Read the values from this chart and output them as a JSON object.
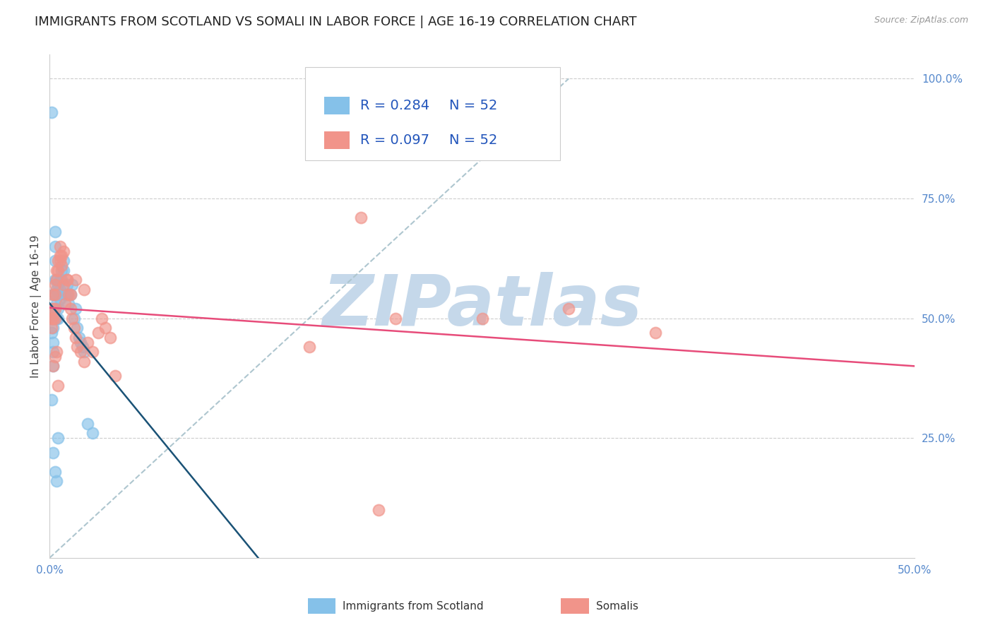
{
  "title": "IMMIGRANTS FROM SCOTLAND VS SOMALI IN LABOR FORCE | AGE 16-19 CORRELATION CHART",
  "source": "Source: ZipAtlas.com",
  "ylabel": "In Labor Force | Age 16-19",
  "xlim": [
    0.0,
    0.5
  ],
  "ylim": [
    0.0,
    1.05
  ],
  "scotland_R": 0.284,
  "scotland_N": 52,
  "somali_R": 0.097,
  "somali_N": 52,
  "scotland_color": "#85C1E9",
  "somali_color": "#F1948A",
  "trendline_scotland_color": "#1A5276",
  "trendline_somali_color": "#E74C7A",
  "diagonal_color": "#AEC6CF",
  "background_color": "#FFFFFF",
  "grid_color": "#CCCCCC",
  "title_fontsize": 13,
  "axis_label_fontsize": 11,
  "tick_label_fontsize": 11,
  "legend_fontsize": 14,
  "watermark": "ZIPatlas",
  "watermark_color": "#C5D8EA",
  "watermark_fontsize": 72,
  "scotland_x": [
    0.001,
    0.001,
    0.001,
    0.002,
    0.002,
    0.002,
    0.002,
    0.002,
    0.002,
    0.002,
    0.003,
    0.003,
    0.003,
    0.003,
    0.003,
    0.003,
    0.003,
    0.004,
    0.004,
    0.004,
    0.004,
    0.005,
    0.005,
    0.005,
    0.005,
    0.006,
    0.006,
    0.006,
    0.007,
    0.007,
    0.008,
    0.008,
    0.009,
    0.01,
    0.01,
    0.011,
    0.012,
    0.013,
    0.014,
    0.015,
    0.016,
    0.017,
    0.018,
    0.019,
    0.02,
    0.022,
    0.025,
    0.001,
    0.002,
    0.003,
    0.004,
    0.005
  ],
  "scotland_y": [
    0.93,
    0.5,
    0.47,
    0.55,
    0.52,
    0.5,
    0.48,
    0.45,
    0.43,
    0.4,
    0.68,
    0.65,
    0.62,
    0.58,
    0.55,
    0.52,
    0.5,
    0.58,
    0.56,
    0.53,
    0.5,
    0.57,
    0.55,
    0.52,
    0.5,
    0.58,
    0.56,
    0.54,
    0.6,
    0.58,
    0.62,
    0.6,
    0.55,
    0.57,
    0.55,
    0.53,
    0.55,
    0.57,
    0.5,
    0.52,
    0.48,
    0.46,
    0.45,
    0.44,
    0.43,
    0.28,
    0.26,
    0.33,
    0.22,
    0.18,
    0.16,
    0.25
  ],
  "somali_x": [
    0.001,
    0.001,
    0.002,
    0.002,
    0.002,
    0.003,
    0.003,
    0.003,
    0.003,
    0.004,
    0.004,
    0.005,
    0.005,
    0.006,
    0.006,
    0.007,
    0.007,
    0.008,
    0.009,
    0.01,
    0.011,
    0.012,
    0.013,
    0.014,
    0.015,
    0.016,
    0.018,
    0.02,
    0.022,
    0.025,
    0.028,
    0.03,
    0.032,
    0.035,
    0.038,
    0.002,
    0.003,
    0.004,
    0.005,
    0.006,
    0.008,
    0.01,
    0.012,
    0.015,
    0.02,
    0.15,
    0.2,
    0.25,
    0.3,
    0.35,
    0.18,
    0.19
  ],
  "somali_y": [
    0.5,
    0.48,
    0.55,
    0.52,
    0.5,
    0.57,
    0.55,
    0.52,
    0.5,
    0.6,
    0.58,
    0.62,
    0.6,
    0.65,
    0.62,
    0.63,
    0.61,
    0.57,
    0.53,
    0.58,
    0.55,
    0.52,
    0.5,
    0.48,
    0.46,
    0.44,
    0.43,
    0.41,
    0.45,
    0.43,
    0.47,
    0.5,
    0.48,
    0.46,
    0.38,
    0.4,
    0.42,
    0.43,
    0.36,
    0.63,
    0.64,
    0.58,
    0.55,
    0.58,
    0.56,
    0.44,
    0.5,
    0.5,
    0.52,
    0.47,
    0.71,
    0.1
  ]
}
